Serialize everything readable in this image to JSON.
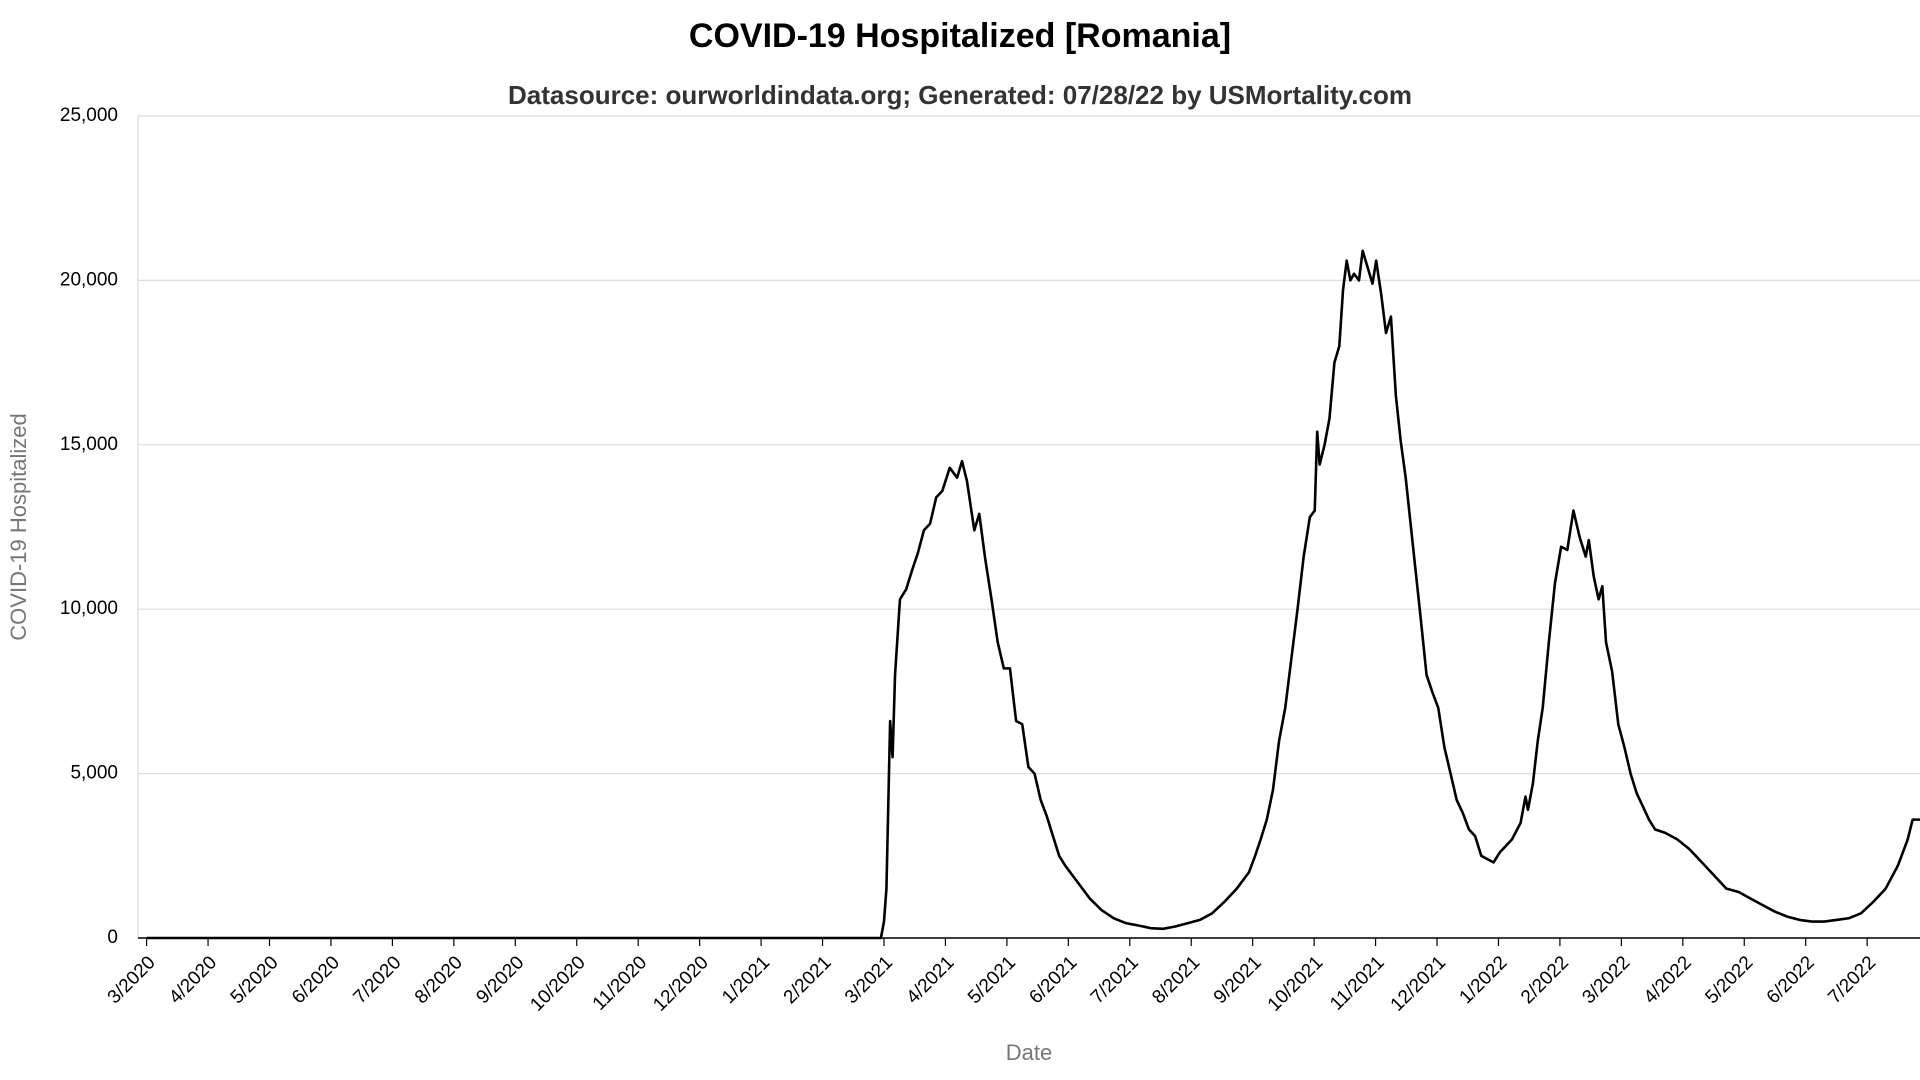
{
  "chart_data": {
    "type": "line",
    "title": "COVID-19 Hospitalized [Romania]",
    "subtitle": "Datasource: ourworldindata.org; Generated: 07/28/22 by USMortality.com",
    "x_label": "Date",
    "y_label": "COVID-19 Hospitalized",
    "color": "#000000",
    "grid": true,
    "xlim": [
      -0.14,
      28.86
    ],
    "ylim": [
      0,
      25000
    ],
    "yticks": [
      0,
      {
        "value": 5000,
        "label": "5,000"
      },
      {
        "value": 10000,
        "label": "10,000"
      },
      {
        "value": 15000,
        "label": "15,000"
      },
      {
        "value": 20000,
        "label": "20,000"
      },
      {
        "value": 25000,
        "label": "25,000"
      }
    ],
    "xticks": [
      {
        "value": 0,
        "label": "3/2020"
      },
      {
        "value": 1,
        "label": "4/2020"
      },
      {
        "value": 2,
        "label": "5/2020"
      },
      {
        "value": 3,
        "label": "6/2020"
      },
      {
        "value": 4,
        "label": "7/2020"
      },
      {
        "value": 5,
        "label": "8/2020"
      },
      {
        "value": 6,
        "label": "9/2020"
      },
      {
        "value": 7,
        "label": "10/2020"
      },
      {
        "value": 8,
        "label": "11/2020"
      },
      {
        "value": 9,
        "label": "12/2020"
      },
      {
        "value": 10,
        "label": "1/2021"
      },
      {
        "value": 11,
        "label": "2/2021"
      },
      {
        "value": 12,
        "label": "3/2021"
      },
      {
        "value": 13,
        "label": "4/2021"
      },
      {
        "value": 14,
        "label": "5/2021"
      },
      {
        "value": 15,
        "label": "6/2021"
      },
      {
        "value": 16,
        "label": "7/2021"
      },
      {
        "value": 17,
        "label": "8/2021"
      },
      {
        "value": 18,
        "label": "9/2021"
      },
      {
        "value": 19,
        "label": "10/2021"
      },
      {
        "value": 20,
        "label": "11/2021"
      },
      {
        "value": 21,
        "label": "12/2021"
      },
      {
        "value": 22,
        "label": "1/2022"
      },
      {
        "value": 23,
        "label": "2/2022"
      },
      {
        "value": 24,
        "label": "3/2022"
      },
      {
        "value": 25,
        "label": "4/2022"
      },
      {
        "value": 26,
        "label": "5/2022"
      },
      {
        "value": 27,
        "label": "6/2022"
      },
      {
        "value": 28,
        "label": "7/2022"
      }
    ],
    "x": [
      0,
      11.95,
      12.0,
      12.04,
      12.1,
      12.14,
      12.18,
      12.26,
      12.36,
      12.46,
      12.55,
      12.65,
      12.75,
      12.85,
      12.95,
      13.07,
      13.19,
      13.27,
      13.35,
      13.47,
      13.55,
      13.65,
      13.75,
      13.85,
      13.95,
      14.05,
      14.15,
      14.25,
      14.35,
      14.45,
      14.55,
      14.65,
      14.75,
      14.85,
      14.95,
      15.15,
      15.35,
      15.54,
      15.74,
      15.94,
      16.14,
      16.34,
      16.54,
      16.74,
      16.94,
      17.14,
      17.34,
      17.54,
      17.74,
      17.94,
      18.04,
      18.13,
      18.23,
      18.33,
      18.43,
      18.53,
      18.63,
      18.73,
      18.83,
      18.93,
      19.01,
      19.05,
      19.09,
      19.17,
      19.25,
      19.33,
      19.41,
      19.47,
      19.53,
      19.59,
      19.65,
      19.73,
      19.79,
      19.87,
      19.95,
      20.01,
      20.09,
      20.17,
      20.25,
      20.33,
      20.41,
      20.49,
      20.57,
      20.65,
      20.73,
      20.83,
      20.92,
      21.02,
      21.12,
      21.22,
      21.32,
      21.42,
      21.52,
      21.62,
      21.72,
      21.82,
      21.92,
      22.02,
      22.22,
      22.36,
      22.44,
      22.48,
      22.56,
      22.64,
      22.72,
      22.82,
      22.92,
      23.02,
      23.12,
      23.22,
      23.32,
      23.42,
      23.47,
      23.55,
      23.63,
      23.69,
      23.75,
      23.85,
      23.95,
      24.05,
      24.15,
      24.25,
      24.35,
      24.45,
      24.55,
      24.71,
      24.91,
      25.11,
      25.31,
      25.51,
      25.71,
      25.91,
      26.1,
      26.3,
      26.5,
      26.7,
      26.9,
      27.1,
      27.3,
      27.5,
      27.7,
      27.9,
      28.1,
      28.3,
      28.5,
      28.66,
      28.74,
      28.86
    ],
    "values": [
      0,
      0,
      500,
      1500,
      6600,
      5500,
      8000,
      10300,
      10600,
      11200,
      11700,
      12400,
      12600,
      13400,
      13600,
      14300,
      14000,
      14500,
      13900,
      12400,
      12900,
      11500,
      10300,
      9000,
      8200,
      8200,
      6600,
      6500,
      5200,
      5000,
      4200,
      3700,
      3100,
      2500,
      2200,
      1700,
      1200,
      850,
      600,
      450,
      380,
      300,
      280,
      350,
      450,
      550,
      750,
      1100,
      1500,
      2000,
      2500,
      3000,
      3600,
      4500,
      6000,
      7000,
      8500,
      10000,
      11600,
      12800,
      13000,
      15400,
      14400,
      15000,
      15800,
      17500,
      18000,
      19700,
      20600,
      20000,
      20200,
      20000,
      20900,
      20400,
      19900,
      20600,
      19600,
      18400,
      18900,
      16500,
      15100,
      14000,
      12600,
      11200,
      9800,
      8000,
      7500,
      7000,
      5800,
      5000,
      4200,
      3800,
      3300,
      3100,
      2500,
      2400,
      2300,
      2600,
      3000,
      3500,
      4300,
      3900,
      4700,
      6000,
      7000,
      9000,
      10800,
      11900,
      11800,
      13000,
      12200,
      11600,
      12100,
      11000,
      10300,
      10700,
      9000,
      8100,
      6500,
      5800,
      5000,
      4400,
      4000,
      3600,
      3300,
      3200,
      3000,
      2700,
      2300,
      1900,
      1500,
      1400,
      1200,
      1000,
      800,
      650,
      550,
      500,
      500,
      550,
      600,
      750,
      1100,
      1500,
      2200,
      3000,
      3600,
      3600
    ]
  }
}
